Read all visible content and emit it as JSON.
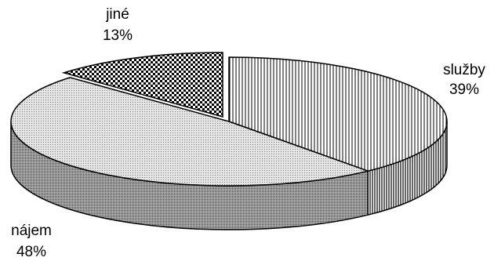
{
  "chart_data": {
    "type": "pie",
    "style": "3d-exploded-ellipse",
    "title": "",
    "slices": [
      {
        "label": "služby",
        "value": 39,
        "value_label": "39%",
        "pattern": "vertical-lines"
      },
      {
        "label": "nájem",
        "value": 48,
        "value_label": "48%",
        "pattern": "fine-dots"
      },
      {
        "label": "jiné",
        "value": 13,
        "value_label": "13%",
        "pattern": "checker"
      }
    ]
  }
}
